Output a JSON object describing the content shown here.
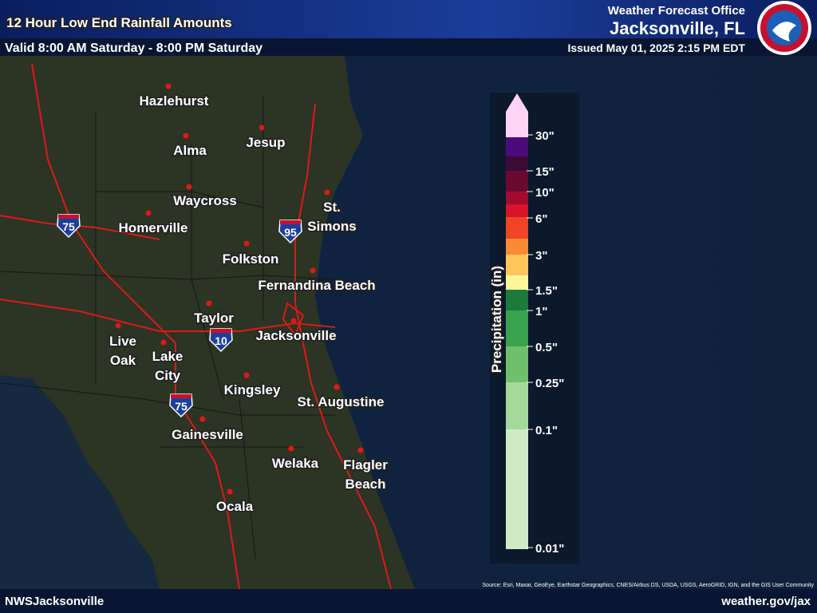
{
  "header": {
    "title": "12 Hour Low End Rainfall Amounts",
    "valid": "Valid 8:00 AM Saturday - 8:00 PM Saturday",
    "office": "Weather Forecast Office",
    "location": "Jacksonville, FL",
    "issued": "Issued May 01, 2025 2:15 PM EDT"
  },
  "cities": [
    "Hazlehurst",
    "Alma",
    "Jesup",
    "Waycross",
    "St. Simons",
    "Homerville",
    "Folkston",
    "Fernandina Beach",
    "Taylor",
    "Jacksonville",
    "Live Oak",
    "Lake City",
    "Kingsley",
    "St. Augustine",
    "Gainesville",
    "Welaka",
    "Flagler Beach",
    "Ocala"
  ],
  "highways": [
    "75",
    "95",
    "10",
    "75"
  ],
  "legend": {
    "title": "Precipitation (in)",
    "ticks": [
      "30\"",
      "15\"",
      "10\"",
      "6\"",
      "3\"",
      "1.5\"",
      "1\"",
      "0.5\"",
      "0.25\"",
      "0.1\"",
      "0.01\""
    ],
    "colors": [
      "#ffd4f6",
      "#4c0b78",
      "#3b0a36",
      "#6a0a2e",
      "#a30b2e",
      "#d8142a",
      "#f04426",
      "#fa8a36",
      "#fdc65a",
      "#fdf59a",
      "#1b7a3c",
      "#38a24f",
      "#6fc06a",
      "#a5d99c",
      "#cdebc5"
    ]
  },
  "source": "Source: Esri, Maxar, GeoEye, Earthstar Geographics, CNES/Airbus DS, USDA, USGS, AeroGRID, IGN, and the GIS User Community",
  "footer": {
    "left": "NWSJacksonville",
    "right": "weather.gov/jax"
  }
}
